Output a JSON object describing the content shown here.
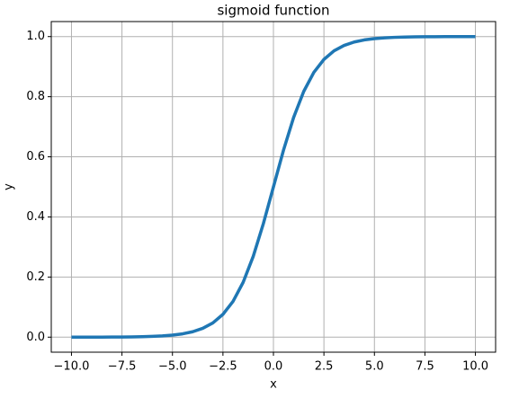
{
  "chart_data": {
    "type": "line",
    "title": "sigmoid function",
    "x_label": "x",
    "y_label": "y",
    "x": [
      -10,
      -9.5,
      -9,
      -8.5,
      -8,
      -7.5,
      -7,
      -6.5,
      -6,
      -5.5,
      -5,
      -4.5,
      -4,
      -3.5,
      -3,
      -2.5,
      -2,
      -1.5,
      -1,
      -0.5,
      0,
      0.5,
      1,
      1.5,
      2,
      2.5,
      3,
      3.5,
      4,
      4.5,
      5,
      5.5,
      6,
      6.5,
      7,
      7.5,
      8,
      8.5,
      9,
      9.5,
      10
    ],
    "values": [
      0,
      0.0001,
      0.0001,
      0.0002,
      0.0003,
      0.0006,
      0.0009,
      0.0015,
      0.0025,
      0.0041,
      0.0067,
      0.011,
      0.018,
      0.0293,
      0.0474,
      0.0759,
      0.1192,
      0.1824,
      0.2689,
      0.3775,
      0.5,
      0.6225,
      0.7311,
      0.8176,
      0.8808,
      0.9241,
      0.9526,
      0.9707,
      0.982,
      0.989,
      0.9933,
      0.9959,
      0.9975,
      0.9985,
      0.9991,
      0.9994,
      0.9997,
      0.9998,
      0.9999,
      0.9999,
      1
    ],
    "color": "#1f77b4",
    "xlim": [
      -11,
      11
    ],
    "ylim": [
      -0.05,
      1.05
    ],
    "xticks": [
      {
        "value": -10,
        "label": "−10.0"
      },
      {
        "value": -7.5,
        "label": "−7.5"
      },
      {
        "value": -5,
        "label": "−5.0"
      },
      {
        "value": -2.5,
        "label": "−2.5"
      },
      {
        "value": 0,
        "label": "0.0"
      },
      {
        "value": 2.5,
        "label": "2.5"
      },
      {
        "value": 5,
        "label": "5.0"
      },
      {
        "value": 7.5,
        "label": "7.5"
      },
      {
        "value": 10,
        "label": "10.0"
      }
    ],
    "yticks": [
      {
        "value": 0,
        "label": "0.0"
      },
      0.2,
      0.4,
      0.6,
      0.8,
      {
        "value": 1,
        "label": "1.0"
      }
    ],
    "grid": true
  }
}
